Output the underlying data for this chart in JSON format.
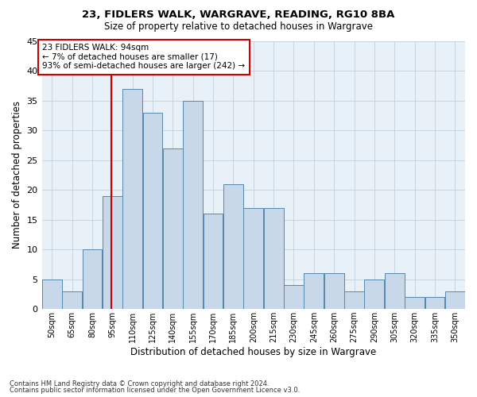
{
  "title1": "23, FIDLERS WALK, WARGRAVE, READING, RG10 8BA",
  "title2": "Size of property relative to detached houses in Wargrave",
  "xlabel": "Distribution of detached houses by size in Wargrave",
  "ylabel": "Number of detached properties",
  "footnote1": "Contains HM Land Registry data © Crown copyright and database right 2024.",
  "footnote2": "Contains public sector information licensed under the Open Government Licence v3.0.",
  "annotation_title": "23 FIDLERS WALK: 94sqm",
  "annotation_line1": "← 7% of detached houses are smaller (17)",
  "annotation_line2": "93% of semi-detached houses are larger (242) →",
  "property_size": 94,
  "bar_labels": [
    "50sqm",
    "65sqm",
    "80sqm",
    "95sqm",
    "110sqm",
    "125sqm",
    "140sqm",
    "155sqm",
    "170sqm",
    "185sqm",
    "200sqm",
    "215sqm",
    "230sqm",
    "245sqm",
    "260sqm",
    "275sqm",
    "290sqm",
    "305sqm",
    "320sqm",
    "335sqm",
    "350sqm"
  ],
  "bin_edges": [
    42.5,
    57.5,
    72.5,
    87.5,
    102.5,
    117.5,
    132.5,
    147.5,
    162.5,
    177.5,
    192.5,
    207.5,
    222.5,
    237.5,
    252.5,
    267.5,
    282.5,
    297.5,
    312.5,
    327.5,
    342.5,
    357.5
  ],
  "bar_values": [
    5,
    3,
    10,
    19,
    37,
    33,
    27,
    35,
    16,
    21,
    17,
    17,
    4,
    6,
    6,
    3,
    5,
    6,
    2,
    2,
    3
  ],
  "bar_color": "#c8d8e8",
  "bar_edge_color": "#5588aa",
  "vline_x": 94,
  "vline_color": "#cc0000",
  "annotation_box_color": "#cc0000",
  "ylim": [
    0,
    45
  ],
  "yticks": [
    0,
    5,
    10,
    15,
    20,
    25,
    30,
    35,
    40,
    45
  ],
  "grid_color": "#b8ccd8",
  "bg_color": "#e8f0f8"
}
